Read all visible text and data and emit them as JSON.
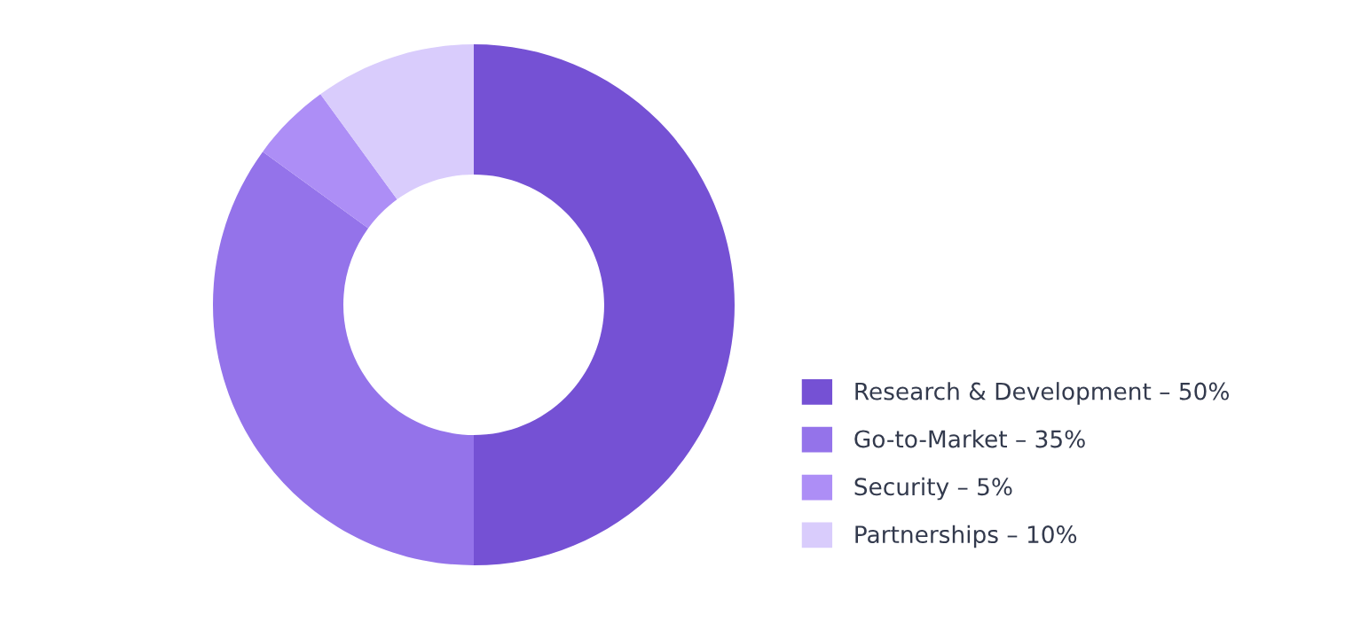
{
  "chart_data": {
    "type": "donut",
    "categories": [
      "Research & Development – 50%",
      "Go-to-Market – 35%",
      "Security – 5%",
      "Partnerships – 10%"
    ],
    "values": [
      50,
      35,
      5,
      10
    ],
    "colors": [
      "#7551d4",
      "#9473ea",
      "#ad8ef6",
      "#d9ccfc"
    ],
    "legend": "bottom right"
  }
}
